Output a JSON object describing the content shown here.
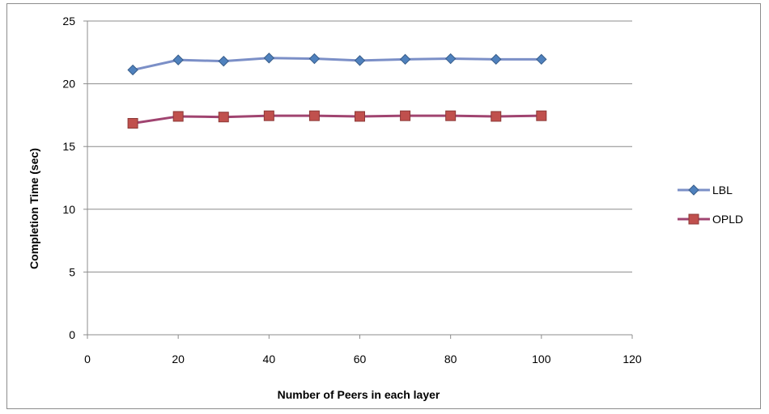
{
  "chart_data": {
    "type": "line",
    "title": "",
    "xlabel": "Number of Peers in each layer",
    "ylabel": "Completion Time (sec)",
    "xlim": [
      0,
      120
    ],
    "ylim": [
      0,
      25
    ],
    "xticks": [
      0,
      20,
      40,
      60,
      80,
      100,
      120
    ],
    "yticks": [
      0,
      5,
      10,
      15,
      20,
      25
    ],
    "grid": "horizontal major gridlines",
    "legend_position": "right",
    "x": [
      10,
      20,
      30,
      40,
      50,
      60,
      70,
      80,
      90,
      100
    ],
    "series": [
      {
        "name": "LBL",
        "marker": "diamond",
        "line_color": "#7b8fc7",
        "marker_fill": "#4f81bd",
        "marker_edge": "#385d8a",
        "values": [
          21.1,
          21.9,
          21.8,
          22.05,
          22.0,
          21.85,
          21.95,
          22.0,
          21.95,
          21.95
        ]
      },
      {
        "name": "OPLD",
        "marker": "square",
        "line_color": "#a04470",
        "marker_fill": "#c0504d",
        "marker_edge": "#8c3836",
        "values": [
          16.85,
          17.4,
          17.35,
          17.45,
          17.45,
          17.4,
          17.45,
          17.45,
          17.4,
          17.45
        ]
      }
    ]
  }
}
